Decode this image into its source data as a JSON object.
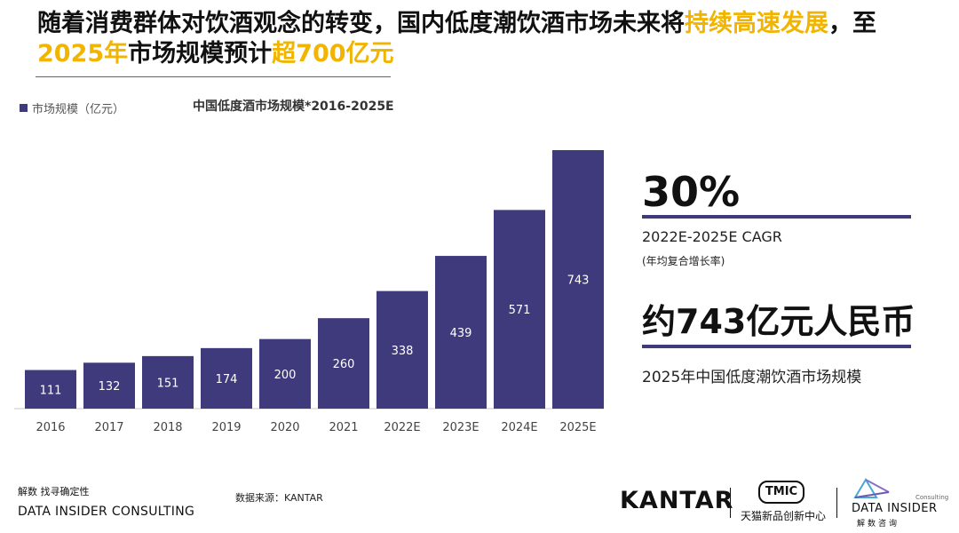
{
  "headline": {
    "part1": "随着消费群体对饮酒观念的转变，国内低度潮饮酒市场未来将",
    "hl1": "持续高速发展",
    "part2": "，至",
    "hl2": "2025年",
    "part3": "市场规模预计",
    "hl3": "超700亿元"
  },
  "legend": {
    "label": "市场规模（亿元）"
  },
  "chart_title": "中国低度酒市场规模*2016-2025E",
  "chart_data": {
    "type": "bar",
    "title": "中国低度酒市场规模*2016-2025E",
    "categories": [
      "2016",
      "2017",
      "2018",
      "2019",
      "2020",
      "2021",
      "2022E",
      "2023E",
      "2024E",
      "2025E"
    ],
    "series": [
      {
        "name": "市场规模（亿元）",
        "values": [
          111,
          132,
          151,
          174,
          200,
          260,
          338,
          439,
          571,
          743
        ]
      }
    ],
    "ylim": [
      0,
      743
    ],
    "bar_color": "#3f3a7c",
    "label_color": "#ffffff",
    "grid": false,
    "legend_position": "top-left"
  },
  "kpi": {
    "cagr_value": "30%",
    "cagr_label": "2022E-2025E CAGR",
    "cagr_sub": "(年均复合增长率)",
    "amount": "约743亿元人民币",
    "amount_label": "2025年中国低度潮饮酒市场规模"
  },
  "footer": {
    "tagline": "解数 找寻确定性",
    "company": "DATA INSIDER CONSULTING",
    "source": "数据来源：KANTAR"
  },
  "logos": {
    "kantar": "KANTAR",
    "tmic": "TMIC",
    "tmic_name": "天猫新品创新中心",
    "di_consulting": "Consulting",
    "di_name": "DATA INSIDER",
    "di_cn": "解数咨询"
  },
  "colors": {
    "accent": "#f1b400",
    "bar": "#3f3a7c"
  }
}
